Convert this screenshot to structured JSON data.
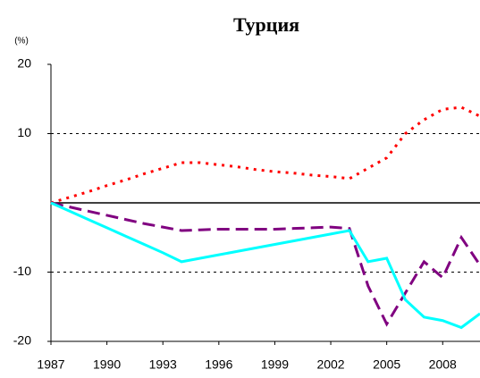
{
  "chart_data": {
    "type": "line",
    "title": "Турция",
    "y_label": "(%)",
    "x": [
      1987,
      1988,
      1989,
      1990,
      1991,
      1992,
      1993,
      1994,
      1995,
      1996,
      1997,
      1998,
      1999,
      2000,
      2001,
      2002,
      2003,
      2004,
      2005,
      2006,
      2007,
      2008,
      2009,
      2010
    ],
    "xlim": [
      1987,
      2010
    ],
    "xticks": [
      1987,
      1990,
      1993,
      1996,
      1999,
      2002,
      2005,
      2008
    ],
    "ylim": [
      -20,
      20
    ],
    "yticks": [
      -20,
      -10,
      10,
      20
    ],
    "grid": true,
    "series": [
      {
        "color": "#ff0000",
        "dash": "dotted",
        "values": [
          0,
          0.8,
          1.6,
          2.5,
          3.3,
          4.2,
          5,
          5.8,
          5.8,
          5.5,
          5.2,
          4.8,
          4.5,
          4.3,
          4,
          3.8,
          3.5,
          5,
          6.5,
          10,
          12,
          13.5,
          13.8,
          12.5
        ]
      },
      {
        "color": "#800080",
        "dash": "dashed",
        "values": [
          0,
          -0.6,
          -1.2,
          -1.8,
          -2.4,
          -3,
          -3.5,
          -4,
          -3.9,
          -3.8,
          -3.8,
          -3.8,
          -3.8,
          -3.7,
          -3.6,
          -3.5,
          -3.7,
          -12,
          -17.5,
          -13,
          -8.5,
          -10.8,
          -5,
          -9
        ]
      },
      {
        "color": "#00ffff",
        "dash": "solid",
        "values": [
          0,
          -1.2,
          -2.4,
          -3.6,
          -4.8,
          -6,
          -7.2,
          -8.5,
          -8,
          -7.5,
          -7,
          -6.5,
          -6,
          -5.5,
          -5,
          -4.5,
          -4,
          -8.5,
          -8,
          -14,
          -16.5,
          -17,
          -18,
          -16
        ]
      }
    ]
  }
}
